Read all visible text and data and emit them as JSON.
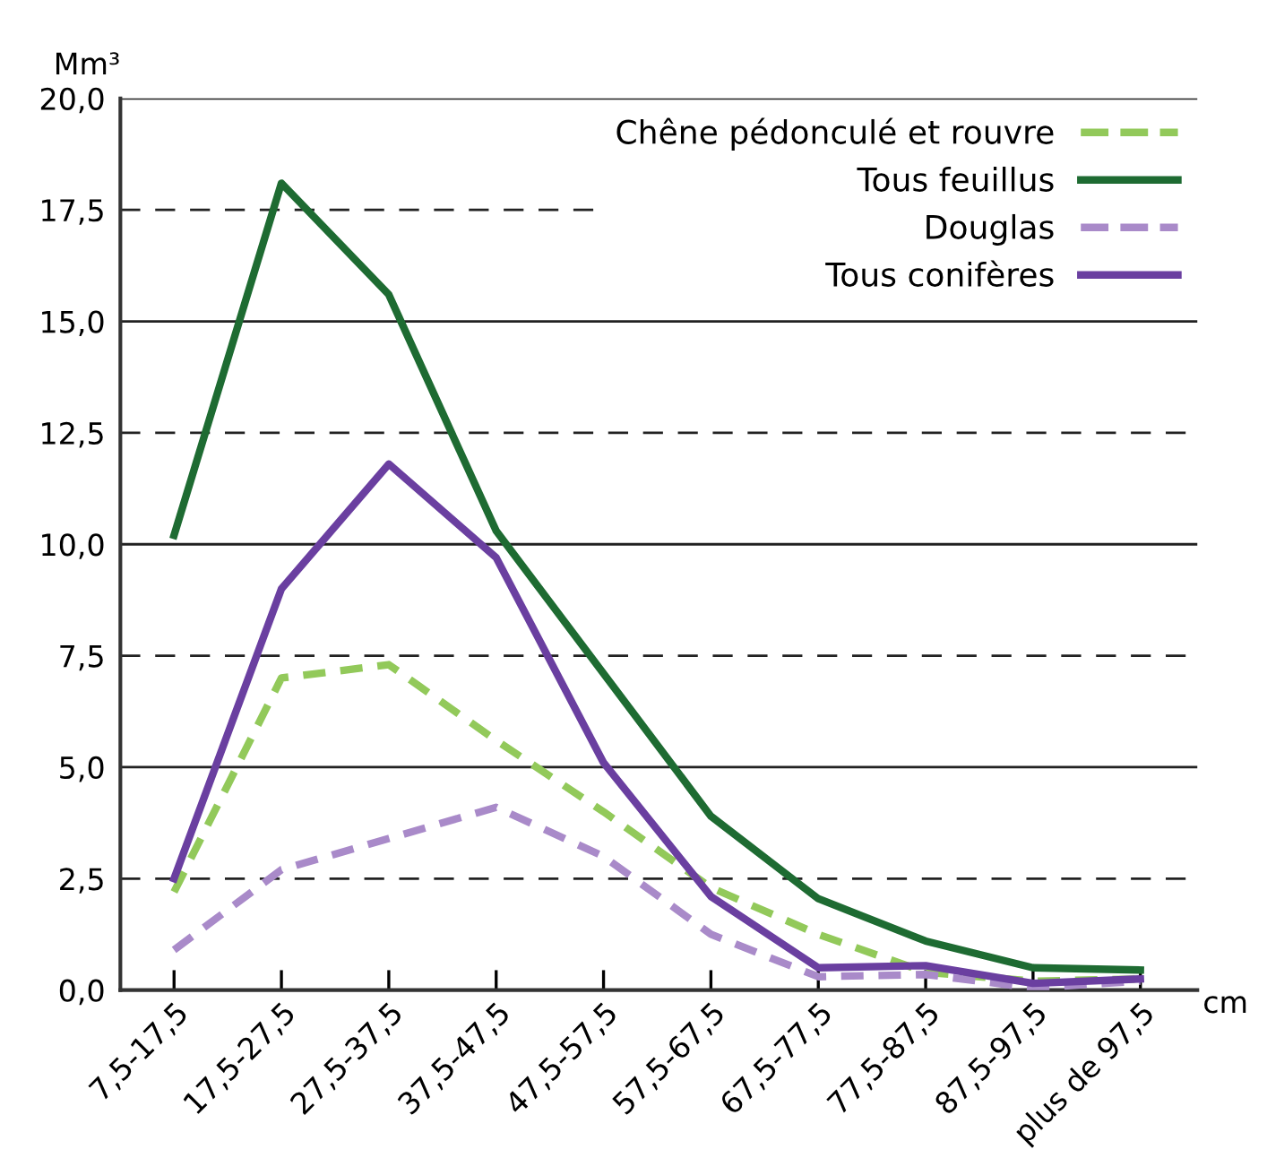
{
  "chart_data": {
    "type": "line",
    "ylabel": "Mm³",
    "xlabel": "cm",
    "categories": [
      "7,5-17,5",
      "17,5-27,5",
      "27,5-37,5",
      "37,5-47,5",
      "47,5-57,5",
      "57,5-67,5",
      "67,5-77,5",
      "77,5-87,5",
      "87,5-97,5",
      "plus de 97,5"
    ],
    "series": [
      {
        "name": "Chêne pédonculé et rouvre",
        "color": "#92c95a",
        "line_style": "dashed",
        "values": [
          2.2,
          7.0,
          7.3,
          5.6,
          4.0,
          2.3,
          1.25,
          0.4,
          0.2,
          0.25
        ]
      },
      {
        "name": "Tous feuillus",
        "color": "#1e6b32",
        "line_style": "solid",
        "values": [
          10.2,
          18.1,
          15.6,
          10.3,
          7.1,
          3.9,
          2.05,
          1.1,
          0.5,
          0.45
        ]
      },
      {
        "name": "Douglas",
        "color": "#a98ac9",
        "line_style": "dashed",
        "values": [
          0.9,
          2.7,
          3.4,
          4.1,
          3.0,
          1.25,
          0.3,
          0.35,
          0.05,
          0.2
        ]
      },
      {
        "name": "Tous conifères",
        "color": "#6a3fa0",
        "line_style": "solid",
        "values": [
          2.5,
          9.0,
          11.8,
          9.7,
          5.1,
          2.1,
          0.5,
          0.55,
          0.15,
          0.25
        ]
      }
    ],
    "ylim": [
      0,
      20
    ],
    "yticks": [
      {
        "value": 0,
        "label": "0,0"
      },
      {
        "value": 2.5,
        "label": "2,5"
      },
      {
        "value": 5,
        "label": "5,0"
      },
      {
        "value": 7.5,
        "label": "7,5"
      },
      {
        "value": 10,
        "label": "10,0"
      },
      {
        "value": 12.5,
        "label": "12,5"
      },
      {
        "value": 15,
        "label": "15,0"
      },
      {
        "value": 17.5,
        "label": "17,5"
      },
      {
        "value": 20,
        "label": "20,0"
      }
    ],
    "grid": "y",
    "legend": "top right",
    "marker": "none"
  }
}
